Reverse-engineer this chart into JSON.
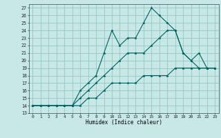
{
  "xlabel": "Humidex (Indice chaleur)",
  "bg_color": "#c8e8e8",
  "grid_color": "#90c8c0",
  "line_color": "#006060",
  "xlim": [
    -0.5,
    23.5
  ],
  "ylim": [
    13,
    27.5
  ],
  "yticks": [
    13,
    14,
    15,
    16,
    17,
    18,
    19,
    20,
    21,
    22,
    23,
    24,
    25,
    26,
    27
  ],
  "xticks": [
    0,
    1,
    2,
    3,
    4,
    5,
    6,
    7,
    8,
    9,
    10,
    11,
    12,
    13,
    14,
    15,
    16,
    17,
    18,
    19,
    20,
    21,
    22,
    23
  ],
  "line1_x": [
    0,
    1,
    2,
    3,
    4,
    5,
    6,
    7,
    8,
    9,
    10,
    11,
    12,
    13,
    14,
    15,
    16,
    17,
    18,
    19,
    20,
    21,
    22,
    23
  ],
  "line1_y": [
    14,
    14,
    14,
    14,
    14,
    14,
    14,
    15,
    15,
    16,
    17,
    17,
    17,
    17,
    18,
    18,
    18,
    18,
    19,
    19,
    19,
    19,
    19,
    19
  ],
  "line2_x": [
    0,
    1,
    2,
    3,
    4,
    5,
    6,
    7,
    8,
    9,
    10,
    11,
    12,
    13,
    14,
    15,
    16,
    17,
    18,
    19,
    20,
    21,
    22,
    23
  ],
  "line2_y": [
    14,
    14,
    14,
    14,
    14,
    14,
    15,
    16,
    17,
    18,
    19,
    20,
    21,
    21,
    21,
    22,
    23,
    24,
    24,
    21,
    20,
    21,
    19,
    19
  ],
  "line3_x": [
    0,
    1,
    2,
    3,
    4,
    5,
    6,
    7,
    8,
    9,
    10,
    11,
    12,
    13,
    14,
    15,
    16,
    17,
    18,
    19,
    20,
    21,
    22,
    23
  ],
  "line3_y": [
    14,
    14,
    14,
    14,
    14,
    14,
    16,
    17,
    18,
    21,
    24,
    22,
    23,
    23,
    25,
    27,
    26,
    25,
    24,
    21,
    20,
    19,
    19,
    19
  ]
}
